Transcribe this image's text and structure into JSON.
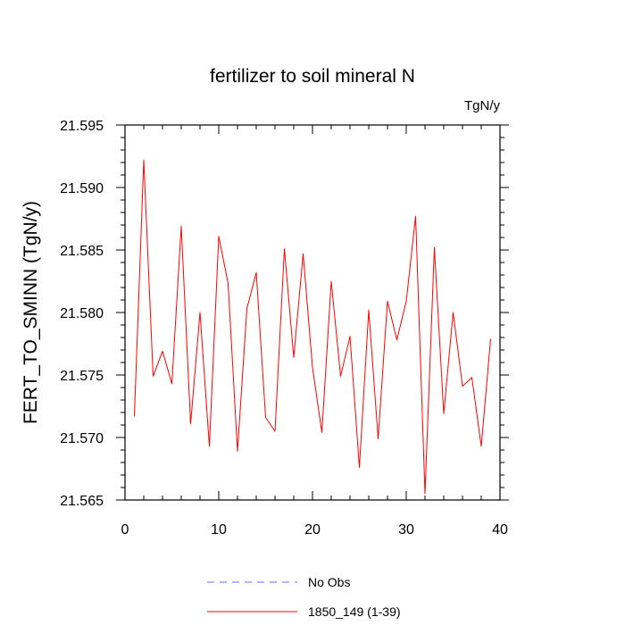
{
  "chart_data": {
    "type": "line",
    "title": "fertilizer to soil mineral N",
    "units": "TgN/y",
    "xlabel": "",
    "ylabel": "FERT_TO_SMINN  (TgN/y)",
    "xlim": [
      0,
      40
    ],
    "ylim": [
      21.565,
      21.595
    ],
    "xticks": [
      0,
      10,
      20,
      30,
      40
    ],
    "xtick_labels": [
      "0",
      "10",
      "20",
      "30",
      "40"
    ],
    "yticks": [
      21.565,
      21.57,
      21.575,
      21.58,
      21.585,
      21.59,
      21.595
    ],
    "ytick_labels": [
      "21.565",
      "21.570",
      "21.575",
      "21.580",
      "21.585",
      "21.590",
      "21.595"
    ],
    "grid": false,
    "legend_position": "bottom",
    "series": [
      {
        "name": "No Obs",
        "color": "#6b6bff",
        "style": "dashed",
        "x": [],
        "values": []
      },
      {
        "name": "1850_149 (1-39)",
        "color": "#ff0000",
        "style": "solid",
        "x": [
          1,
          2,
          3,
          4,
          5,
          6,
          7,
          8,
          9,
          10,
          11,
          12,
          13,
          14,
          15,
          16,
          17,
          18,
          19,
          20,
          21,
          22,
          23,
          24,
          25,
          26,
          27,
          28,
          29,
          30,
          31,
          32,
          33,
          34,
          35,
          36,
          37,
          38,
          39
        ],
        "values": [
          21.5717,
          21.5922,
          21.5749,
          21.5769,
          21.5743,
          21.5869,
          21.5711,
          21.58,
          21.5693,
          21.5861,
          21.5823,
          21.5689,
          21.5803,
          21.5832,
          21.5716,
          21.5705,
          21.5851,
          21.5764,
          21.5847,
          21.5756,
          21.5704,
          21.5825,
          21.5749,
          21.5781,
          21.5676,
          21.5802,
          21.5699,
          21.5809,
          21.5778,
          21.5809,
          21.5877,
          21.5655,
          21.5852,
          21.5719,
          21.58,
          21.5741,
          21.5748,
          21.5693,
          21.5779
        ]
      }
    ]
  }
}
